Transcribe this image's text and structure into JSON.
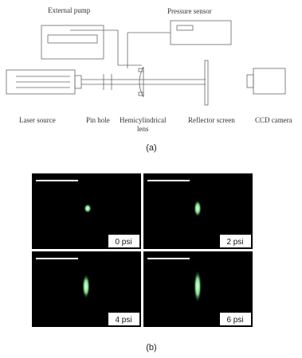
{
  "panel_a": {
    "labels": {
      "external_pump": "External pump",
      "pressure_sensor": "Pressure sensor",
      "laser_source": "Laser source",
      "pin_hole": "Pin hole",
      "hemicylindrical_lens": [
        "Hemicylindrical",
        "lens"
      ],
      "reflector_screen": "Reflector screen",
      "ccd_camera": "CCD camera"
    },
    "caption": "(a)"
  },
  "panel_b": {
    "images": [
      {
        "label": "0 psi"
      },
      {
        "label": "2 psi"
      },
      {
        "label": "4 psi"
      },
      {
        "label": "6 psi"
      }
    ],
    "caption": "(b)"
  }
}
